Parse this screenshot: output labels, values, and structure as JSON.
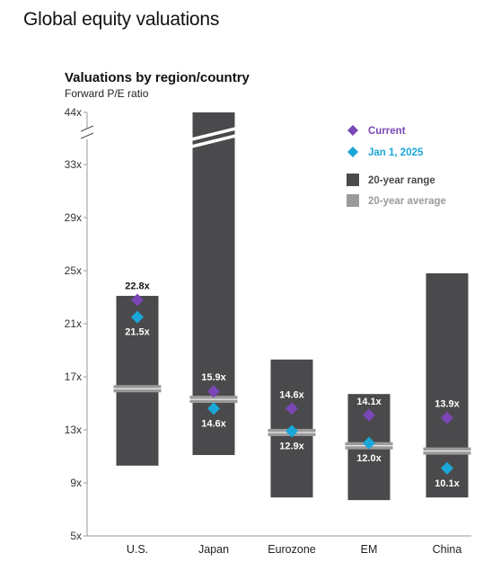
{
  "page": {
    "title": "Global equity valuations"
  },
  "colors": {
    "range_bar": "#4a4a4c",
    "average_bar": "#9a9a9a",
    "current": "#7b46b5",
    "jan_2025": "#1aa7d8",
    "axis": "#999999"
  },
  "chart_data": {
    "type": "range-bar",
    "title": "Valuations by region/country",
    "subtitle": "Forward P/E ratio",
    "categories": [
      "U.S.",
      "Japan",
      "Eurozone",
      "EM",
      "China"
    ],
    "y_ticks": [
      "5x",
      "9x",
      "13x",
      "17x",
      "21x",
      "25x",
      "29x",
      "33x",
      "44x"
    ],
    "y_tick_values": [
      5,
      9,
      13,
      17,
      21,
      25,
      29,
      33,
      44
    ],
    "y_axis_break": {
      "between": [
        33,
        44
      ]
    },
    "range_low": [
      10.3,
      11.1,
      7.9,
      7.7,
      7.9
    ],
    "range_high": [
      23.1,
      44,
      18.3,
      15.7,
      24.8
    ],
    "range_high_truncated": [
      false,
      true,
      false,
      false,
      false
    ],
    "average": [
      16.1,
      15.3,
      12.8,
      11.8,
      11.4
    ],
    "current": [
      22.8,
      15.9,
      14.6,
      14.1,
      13.9
    ],
    "jan_2025": [
      21.5,
      14.6,
      12.9,
      12.0,
      10.1
    ],
    "current_labels": [
      "22.8x",
      "15.9x",
      "14.6x",
      "14.1x",
      "13.9x"
    ],
    "jan_2025_labels": [
      "21.5x",
      "14.6x",
      "12.9x",
      "12.0x",
      "10.1x"
    ],
    "legend": {
      "current": "Current",
      "jan_2025": "Jan 1, 2025",
      "range": "20-year range",
      "average": "20-year average"
    },
    "legend_position": "top-right",
    "grid": false
  }
}
